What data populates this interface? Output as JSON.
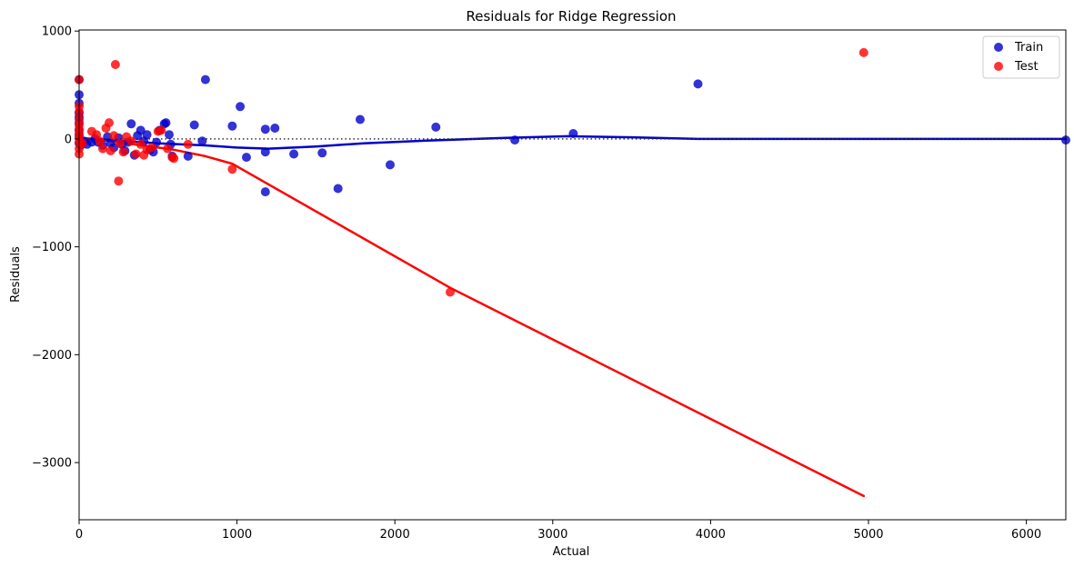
{
  "chart_data": {
    "type": "scatter",
    "title": "Residuals for Ridge Regression",
    "xlabel": "Actual",
    "ylabel": "Residuals",
    "xlim": [
      0,
      6250
    ],
    "ylim": [
      -3530,
      1010
    ],
    "x_ticks": [
      0,
      1000,
      2000,
      3000,
      4000,
      5000,
      6000
    ],
    "x_tick_labels": [
      "0",
      "1000",
      "2000",
      "3000",
      "4000",
      "5000",
      "6000"
    ],
    "y_ticks": [
      1000,
      0,
      -1000,
      -2000,
      -3000
    ],
    "y_tick_labels": [
      "1000",
      "0",
      "−1000",
      "−2000",
      "−3000"
    ],
    "zero_line": true,
    "grid": false,
    "legend_position": "top-right",
    "series": [
      {
        "name": "Train",
        "color": "#0000cc",
        "points": [
          [
            0,
            550
          ],
          [
            0,
            410
          ],
          [
            0,
            330
          ],
          [
            0,
            240
          ],
          [
            0,
            200
          ],
          [
            0,
            150
          ],
          [
            0,
            80
          ],
          [
            0,
            30
          ],
          [
            0,
            -40
          ],
          [
            10,
            -60
          ],
          [
            30,
            -20
          ],
          [
            50,
            -50
          ],
          [
            80,
            -30
          ],
          [
            100,
            0
          ],
          [
            120,
            -30
          ],
          [
            150,
            -60
          ],
          [
            180,
            20
          ],
          [
            200,
            -40
          ],
          [
            220,
            -80
          ],
          [
            250,
            10
          ],
          [
            270,
            -50
          ],
          [
            290,
            -110
          ],
          [
            310,
            -30
          ],
          [
            330,
            140
          ],
          [
            350,
            -150
          ],
          [
            370,
            30
          ],
          [
            390,
            80
          ],
          [
            410,
            -20
          ],
          [
            430,
            40
          ],
          [
            450,
            -100
          ],
          [
            470,
            -120
          ],
          [
            490,
            -30
          ],
          [
            510,
            80
          ],
          [
            540,
            140
          ],
          [
            550,
            150
          ],
          [
            570,
            40
          ],
          [
            580,
            -50
          ],
          [
            590,
            -160
          ],
          [
            690,
            -160
          ],
          [
            730,
            130
          ],
          [
            780,
            -20
          ],
          [
            800,
            550
          ],
          [
            970,
            120
          ],
          [
            1020,
            300
          ],
          [
            1060,
            -170
          ],
          [
            1180,
            -120
          ],
          [
            1180,
            -490
          ],
          [
            1180,
            90
          ],
          [
            1240,
            100
          ],
          [
            1360,
            -140
          ],
          [
            1540,
            -130
          ],
          [
            1640,
            -460
          ],
          [
            1780,
            180
          ],
          [
            1970,
            -240
          ],
          [
            2260,
            110
          ],
          [
            2760,
            -10
          ],
          [
            3130,
            50
          ],
          [
            3920,
            510
          ],
          [
            6250,
            -10
          ]
        ],
        "lowess": [
          [
            0,
            10
          ],
          [
            200,
            -10
          ],
          [
            500,
            -40
          ],
          [
            800,
            -60
          ],
          [
            1000,
            -80
          ],
          [
            1200,
            -90
          ],
          [
            1500,
            -70
          ],
          [
            1800,
            -40
          ],
          [
            2200,
            -15
          ],
          [
            2700,
            10
          ],
          [
            3100,
            25
          ],
          [
            3500,
            15
          ],
          [
            3920,
            0
          ],
          [
            5000,
            0
          ],
          [
            6250,
            0
          ]
        ]
      },
      {
        "name": "Test",
        "color": "#ff0000",
        "points": [
          [
            0,
            550
          ],
          [
            0,
            300
          ],
          [
            0,
            250
          ],
          [
            0,
            180
          ],
          [
            0,
            130
          ],
          [
            0,
            90
          ],
          [
            0,
            50
          ],
          [
            0,
            10
          ],
          [
            0,
            -30
          ],
          [
            0,
            -90
          ],
          [
            0,
            -140
          ],
          [
            20,
            -40
          ],
          [
            80,
            70
          ],
          [
            110,
            40
          ],
          [
            130,
            -20
          ],
          [
            150,
            -90
          ],
          [
            170,
            100
          ],
          [
            190,
            150
          ],
          [
            200,
            -110
          ],
          [
            220,
            30
          ],
          [
            230,
            690
          ],
          [
            250,
            -390
          ],
          [
            260,
            -40
          ],
          [
            280,
            -120
          ],
          [
            300,
            20
          ],
          [
            330,
            -20
          ],
          [
            360,
            -140
          ],
          [
            390,
            -50
          ],
          [
            410,
            -150
          ],
          [
            430,
            -100
          ],
          [
            460,
            -80
          ],
          [
            500,
            70
          ],
          [
            520,
            80
          ],
          [
            560,
            -90
          ],
          [
            590,
            -170
          ],
          [
            600,
            -180
          ],
          [
            690,
            -50
          ],
          [
            970,
            -280
          ],
          [
            2350,
            -1420
          ],
          [
            4970,
            800
          ]
        ],
        "lowess": [
          [
            0,
            10
          ],
          [
            200,
            -20
          ],
          [
            400,
            -60
          ],
          [
            600,
            -100
          ],
          [
            800,
            -160
          ],
          [
            970,
            -230
          ],
          [
            2350,
            -1380
          ],
          [
            4970,
            -3310
          ]
        ]
      }
    ]
  }
}
